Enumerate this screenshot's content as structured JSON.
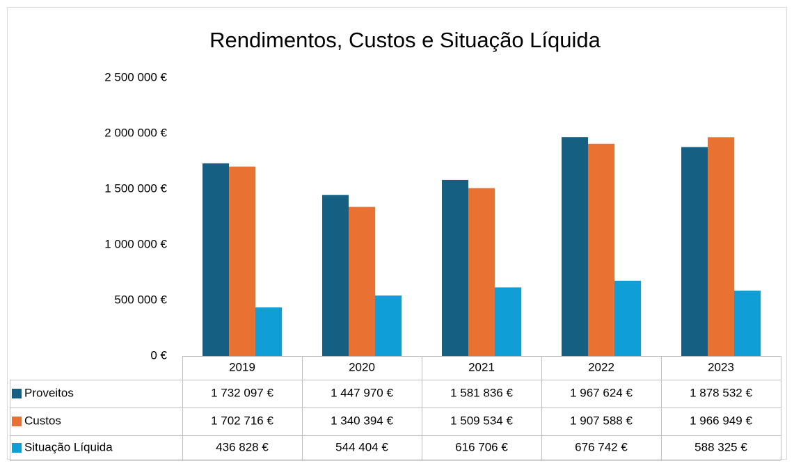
{
  "chart_data": {
    "type": "bar",
    "title": "Rendimentos, Custos e Situação Líquida",
    "categories": [
      "2019",
      "2020",
      "2021",
      "2022",
      "2023"
    ],
    "series": [
      {
        "name": "Proveitos",
        "color": "#156082",
        "values": [
          1732097,
          1447970,
          1581836,
          1967624,
          1878532
        ],
        "value_labels": [
          "1 732 097 €",
          "1 447 970 €",
          "1 581 836 €",
          "1 967 624 €",
          "1 878 532 €"
        ]
      },
      {
        "name": "Custos",
        "color": "#e97132",
        "values": [
          1702716,
          1340394,
          1509534,
          1907588,
          1966949
        ],
        "value_labels": [
          "1 702 716 €",
          "1 340 394 €",
          "1 509 534 €",
          "1 907 588 €",
          "1 966 949 €"
        ]
      },
      {
        "name": "Situação Líquida",
        "color": "#0f9ed5",
        "values": [
          436828,
          544404,
          616706,
          676742,
          588325
        ],
        "value_labels": [
          "436 828 €",
          "544 404 €",
          "616 706 €",
          "676 742 €",
          "588 325 €"
        ]
      }
    ],
    "ylim": [
      0,
      2500000
    ],
    "yticks": [
      {
        "value": 0,
        "label": "0 €"
      },
      {
        "value": 500000,
        "label": "500 000 €"
      },
      {
        "value": 1000000,
        "label": "1 000 000 €"
      },
      {
        "value": 1500000,
        "label": "1 500 000 €"
      },
      {
        "value": 2000000,
        "label": "2 000 000 €"
      },
      {
        "value": 2500000,
        "label": "2 500 000 €"
      }
    ],
    "grid": false
  }
}
